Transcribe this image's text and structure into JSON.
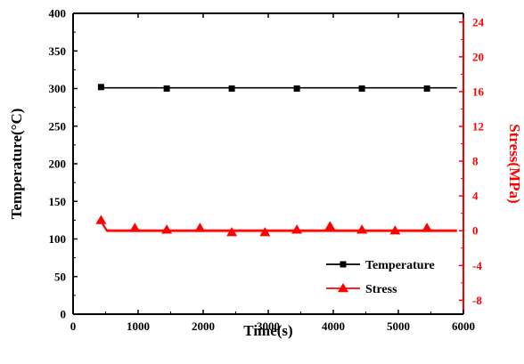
{
  "chart_data": {
    "type": "line",
    "x_axis": {
      "label": "Time(s)",
      "range": [
        0,
        6000
      ],
      "ticks": [
        0,
        1000,
        2000,
        3000,
        4000,
        5000,
        6000
      ]
    },
    "y_axis_left": {
      "label": "Temperature(°C)",
      "range": [
        0,
        400
      ],
      "ticks": [
        0,
        50,
        100,
        150,
        200,
        250,
        300,
        350,
        400
      ]
    },
    "y_axis_right": {
      "label": "Stress(MPa)",
      "range": [
        -9.6,
        25
      ],
      "ticks": [
        -8,
        -4,
        0,
        4,
        8,
        12,
        16,
        20,
        24
      ],
      "color": "#ff0000"
    },
    "series": [
      {
        "name": "Temperature",
        "axis": "left",
        "color": "#000000",
        "marker": "square",
        "x": [
          420,
          5900
        ],
        "y": [
          301,
          301
        ],
        "markers": [
          {
            "x": 430,
            "y": 302
          },
          {
            "x": 1440,
            "y": 300
          },
          {
            "x": 2440,
            "y": 300
          },
          {
            "x": 3440,
            "y": 300
          },
          {
            "x": 4440,
            "y": 300
          },
          {
            "x": 5440,
            "y": 300
          }
        ]
      },
      {
        "name": "Stress",
        "axis": "right",
        "color": "#ff0000",
        "marker": "triangle",
        "x": [
          420,
          520,
          5900
        ],
        "y": [
          1.2,
          0,
          0
        ],
        "markers": [
          {
            "x": 430,
            "y": 1.2
          },
          {
            "x": 950,
            "y": 0.3
          },
          {
            "x": 1440,
            "y": 0.1
          },
          {
            "x": 1950,
            "y": 0.3
          },
          {
            "x": 2440,
            "y": -0.2
          },
          {
            "x": 2950,
            "y": -0.2
          },
          {
            "x": 3440,
            "y": 0.1
          },
          {
            "x": 3950,
            "y": 0.5
          },
          {
            "x": 4440,
            "y": 0.1
          },
          {
            "x": 4950,
            "y": 0
          },
          {
            "x": 5440,
            "y": 0.3
          }
        ]
      }
    ],
    "legend": {
      "placement": "bottom-right"
    }
  }
}
